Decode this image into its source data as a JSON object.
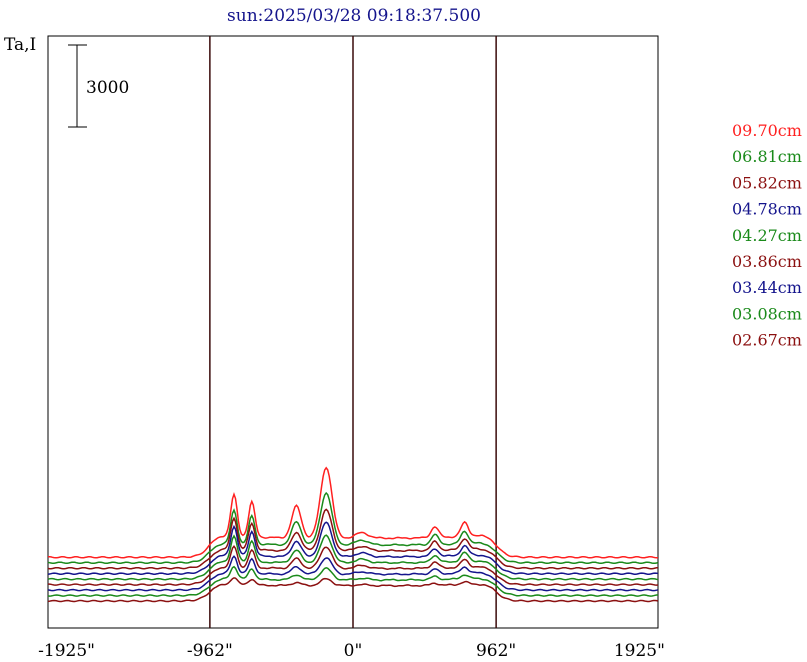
{
  "chart_data": {
    "type": "line",
    "title": "sun:2025/03/28 09:18:37.500",
    "ylabel": "Ta,I",
    "xlabel": "",
    "xlim": [
      -2050,
      2050
    ],
    "x_ticks": [
      {
        "value": -1925,
        "label": "-1925\""
      },
      {
        "value": -962,
        "label": "-962\""
      },
      {
        "value": 0,
        "label": "0\""
      },
      {
        "value": 962,
        "label": "962\""
      },
      {
        "value": 1925,
        "label": "1925\""
      }
    ],
    "reference_lines_x": [
      -962,
      0,
      962
    ],
    "scale_bar": {
      "value": 3000,
      "label": "3000"
    },
    "stacked_offsets": true,
    "grid": false,
    "legend_position": "right",
    "series": [
      {
        "name": "09.70cm",
        "color": "#ff2020",
        "baseline": 1600,
        "profile": {
          "limb": 900,
          "center": 700,
          "left_peak": 1500,
          "center_peak": 2600,
          "right_bump": 500
        }
      },
      {
        "name": "06.81cm",
        "color": "#1a8a1a",
        "baseline": 1400,
        "profile": {
          "limb": 800,
          "center": 650,
          "left_peak": 1200,
          "center_peak": 1900,
          "right_bump": 450
        }
      },
      {
        "name": "05.82cm",
        "color": "#8b1010",
        "baseline": 1200,
        "profile": {
          "limb": 780,
          "center": 640,
          "left_peak": 1150,
          "center_peak": 1500,
          "right_bump": 400
        }
      },
      {
        "name": "04.78cm",
        "color": "#14148c",
        "baseline": 1000,
        "profile": {
          "limb": 760,
          "center": 620,
          "left_peak": 1050,
          "center_peak": 1250,
          "right_bump": 350
        }
      },
      {
        "name": "04.27cm",
        "color": "#1a8a1a",
        "baseline": 800,
        "profile": {
          "limb": 740,
          "center": 600,
          "left_peak": 900,
          "center_peak": 1000,
          "right_bump": 320
        }
      },
      {
        "name": "03.86cm",
        "color": "#8b1010",
        "baseline": 600,
        "profile": {
          "limb": 720,
          "center": 590,
          "left_peak": 750,
          "center_peak": 800,
          "right_bump": 280
        }
      },
      {
        "name": "03.44cm",
        "color": "#14148c",
        "baseline": 400,
        "profile": {
          "limb": 700,
          "center": 580,
          "left_peak": 600,
          "center_peak": 600,
          "right_bump": 220
        }
      },
      {
        "name": "03.08cm",
        "color": "#1a8a1a",
        "baseline": 200,
        "profile": {
          "limb": 690,
          "center": 570,
          "left_peak": 450,
          "center_peak": 420,
          "right_bump": 150
        }
      },
      {
        "name": "02.67cm",
        "color": "#8b1010",
        "baseline": 0,
        "profile": {
          "limb": 680,
          "center": 560,
          "left_peak": 250,
          "center_peak": 250,
          "right_bump": 100
        }
      }
    ]
  }
}
